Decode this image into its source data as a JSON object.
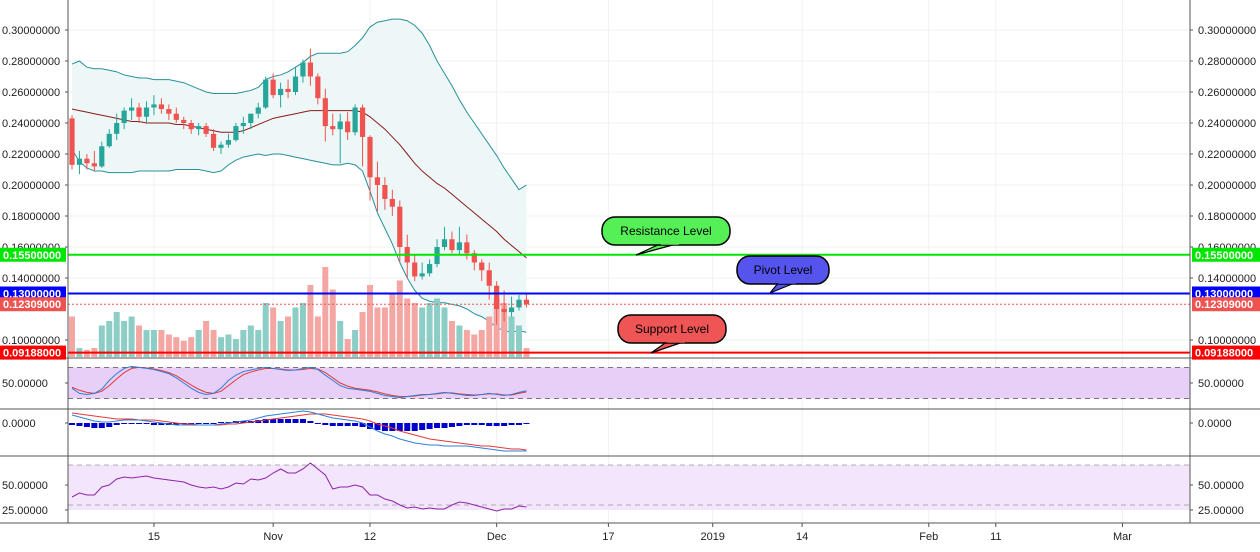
{
  "colors": {
    "up": "#26a69a",
    "down": "#ef5350",
    "volume_up": "#8ccdc5",
    "volume_down": "#f4a6a3",
    "bb_basis": "#8b1a1a",
    "bb_band": "#2a8f9a",
    "bb_fill": "#eef7f7",
    "resistance": "#00e600",
    "pivot": "#0000ff",
    "support": "#ff0000",
    "last_price": "#ef5350",
    "stoch_k": "#2d7fd8",
    "stoch_d": "#e53935",
    "macd_line": "#2d7fd8",
    "macd_signal": "#e53935",
    "macd_hist": "#0000cc",
    "rsi_line": "#8e24aa",
    "osc_fill": "#e8cff8",
    "rsi_fill": "#f3e5fb"
  },
  "levels": {
    "resistance": {
      "label": "Resistance Level",
      "price": 0.155,
      "badge": "0.15500000"
    },
    "pivot": {
      "label": "Pivot Level",
      "price": 0.13,
      "badge": "0.13000000"
    },
    "support": {
      "label": "Support Level",
      "price": 0.09188,
      "badge": "0.09188000"
    },
    "last": {
      "price": 0.12309,
      "badge": "0.12309000"
    }
  },
  "chart_data": {
    "type": "line",
    "main": {
      "y_ticks": [
        "0.30000000",
        "0.28000000",
        "0.26000000",
        "0.24000000",
        "0.22000000",
        "0.20000000",
        "0.18000000",
        "0.16000000",
        "0.14000000",
        "0.10000000"
      ],
      "y_tick_values": [
        0.3,
        0.28,
        0.26,
        0.24,
        0.22,
        0.2,
        0.18,
        0.16,
        0.14,
        0.1
      ],
      "ohlc": [
        [
          0.243,
          0.245,
          0.21,
          0.213
        ],
        [
          0.213,
          0.222,
          0.207,
          0.217
        ],
        [
          0.217,
          0.22,
          0.21,
          0.214
        ],
        [
          0.214,
          0.222,
          0.209,
          0.212
        ],
        [
          0.212,
          0.228,
          0.211,
          0.225
        ],
        [
          0.225,
          0.236,
          0.224,
          0.233
        ],
        [
          0.233,
          0.246,
          0.229,
          0.24
        ],
        [
          0.24,
          0.25,
          0.236,
          0.248
        ],
        [
          0.248,
          0.256,
          0.242,
          0.25
        ],
        [
          0.25,
          0.253,
          0.24,
          0.244
        ],
        [
          0.244,
          0.254,
          0.24,
          0.25
        ],
        [
          0.25,
          0.258,
          0.245,
          0.252
        ],
        [
          0.252,
          0.256,
          0.246,
          0.249
        ],
        [
          0.249,
          0.252,
          0.242,
          0.246
        ],
        [
          0.246,
          0.25,
          0.24,
          0.242
        ],
        [
          0.242,
          0.244,
          0.236,
          0.24
        ],
        [
          0.24,
          0.242,
          0.233,
          0.236
        ],
        [
          0.236,
          0.24,
          0.232,
          0.238
        ],
        [
          0.238,
          0.24,
          0.231,
          0.233
        ],
        [
          0.233,
          0.236,
          0.222,
          0.224
        ],
        [
          0.224,
          0.228,
          0.22,
          0.226
        ],
        [
          0.226,
          0.233,
          0.224,
          0.229
        ],
        [
          0.229,
          0.24,
          0.228,
          0.238
        ],
        [
          0.238,
          0.244,
          0.233,
          0.24
        ],
        [
          0.24,
          0.246,
          0.236,
          0.246
        ],
        [
          0.246,
          0.253,
          0.243,
          0.25
        ],
        [
          0.25,
          0.27,
          0.249,
          0.268
        ],
        [
          0.268,
          0.272,
          0.256,
          0.258
        ],
        [
          0.258,
          0.266,
          0.25,
          0.262
        ],
        [
          0.262,
          0.268,
          0.256,
          0.26
        ],
        [
          0.26,
          0.276,
          0.258,
          0.27
        ],
        [
          0.27,
          0.281,
          0.266,
          0.279
        ],
        [
          0.279,
          0.288,
          0.264,
          0.27
        ],
        [
          0.27,
          0.272,
          0.252,
          0.256
        ],
        [
          0.256,
          0.262,
          0.228,
          0.238
        ],
        [
          0.238,
          0.246,
          0.232,
          0.236
        ],
        [
          0.236,
          0.246,
          0.214,
          0.241
        ],
        [
          0.241,
          0.247,
          0.229,
          0.234
        ],
        [
          0.234,
          0.252,
          0.232,
          0.25
        ],
        [
          0.25,
          0.252,
          0.212,
          0.231
        ],
        [
          0.231,
          0.232,
          0.19,
          0.205
        ],
        [
          0.205,
          0.215,
          0.183,
          0.2
        ],
        [
          0.2,
          0.205,
          0.184,
          0.191
        ],
        [
          0.191,
          0.197,
          0.18,
          0.186
        ],
        [
          0.186,
          0.19,
          0.15,
          0.16
        ],
        [
          0.16,
          0.168,
          0.14,
          0.15
        ],
        [
          0.15,
          0.155,
          0.138,
          0.141
        ],
        [
          0.141,
          0.15,
          0.139,
          0.143
        ],
        [
          0.143,
          0.152,
          0.141,
          0.149
        ],
        [
          0.149,
          0.165,
          0.147,
          0.16
        ],
        [
          0.16,
          0.173,
          0.158,
          0.165
        ],
        [
          0.165,
          0.17,
          0.156,
          0.158
        ],
        [
          0.158,
          0.173,
          0.155,
          0.163
        ],
        [
          0.163,
          0.168,
          0.152,
          0.156
        ],
        [
          0.156,
          0.158,
          0.145,
          0.15
        ],
        [
          0.15,
          0.152,
          0.138,
          0.145
        ],
        [
          0.145,
          0.15,
          0.126,
          0.135
        ],
        [
          0.135,
          0.138,
          0.11,
          0.12
        ],
        [
          0.12,
          0.132,
          0.112,
          0.118
        ],
        [
          0.118,
          0.128,
          0.115,
          0.121
        ],
        [
          0.121,
          0.129,
          0.119,
          0.126
        ],
        [
          0.126,
          0.13,
          0.121,
          0.123
        ]
      ],
      "bb_basis": [
        0.249,
        0.248,
        0.247,
        0.246,
        0.245,
        0.244,
        0.243,
        0.242,
        0.241,
        0.241,
        0.24,
        0.24,
        0.24,
        0.24,
        0.239,
        0.239,
        0.238,
        0.237,
        0.236,
        0.235,
        0.234,
        0.234,
        0.234,
        0.235,
        0.237,
        0.239,
        0.241,
        0.243,
        0.244,
        0.245,
        0.246,
        0.247,
        0.248,
        0.248,
        0.248,
        0.248,
        0.248,
        0.248,
        0.248,
        0.247,
        0.244,
        0.24,
        0.236,
        0.231,
        0.226,
        0.22,
        0.214,
        0.209,
        0.205,
        0.201,
        0.198,
        0.194,
        0.19,
        0.186,
        0.182,
        0.178,
        0.174,
        0.17,
        0.165,
        0.161,
        0.157,
        0.153
      ],
      "bb_upper": [
        0.278,
        0.28,
        0.276,
        0.275,
        0.275,
        0.274,
        0.273,
        0.271,
        0.27,
        0.269,
        0.269,
        0.268,
        0.268,
        0.268,
        0.267,
        0.266,
        0.264,
        0.262,
        0.26,
        0.259,
        0.259,
        0.259,
        0.259,
        0.26,
        0.261,
        0.263,
        0.268,
        0.27,
        0.271,
        0.273,
        0.276,
        0.279,
        0.283,
        0.285,
        0.285,
        0.285,
        0.285,
        0.286,
        0.29,
        0.295,
        0.302,
        0.305,
        0.306,
        0.307,
        0.307,
        0.306,
        0.303,
        0.298,
        0.29,
        0.28,
        0.272,
        0.264,
        0.255,
        0.247,
        0.24,
        0.233,
        0.226,
        0.219,
        0.211,
        0.204,
        0.197,
        0.2
      ],
      "bb_lower": [
        0.223,
        0.215,
        0.211,
        0.209,
        0.209,
        0.208,
        0.208,
        0.208,
        0.208,
        0.209,
        0.209,
        0.209,
        0.209,
        0.209,
        0.21,
        0.21,
        0.21,
        0.21,
        0.209,
        0.208,
        0.209,
        0.213,
        0.216,
        0.218,
        0.219,
        0.22,
        0.219,
        0.22,
        0.22,
        0.219,
        0.218,
        0.217,
        0.216,
        0.215,
        0.214,
        0.213,
        0.213,
        0.214,
        0.213,
        0.209,
        0.196,
        0.182,
        0.172,
        0.162,
        0.15,
        0.14,
        0.132,
        0.127,
        0.125,
        0.124,
        0.124,
        0.123,
        0.122,
        0.12,
        0.117,
        0.115,
        0.112,
        0.108,
        0.106,
        0.105,
        0.106,
        0.105
      ],
      "volume": [
        0.45,
        0.1,
        0.08,
        0.1,
        0.35,
        0.4,
        0.5,
        0.4,
        0.45,
        0.35,
        0.3,
        0.3,
        0.3,
        0.25,
        0.22,
        0.18,
        0.22,
        0.3,
        0.4,
        0.3,
        0.22,
        0.25,
        0.2,
        0.3,
        0.35,
        0.3,
        0.6,
        0.55,
        0.4,
        0.45,
        0.55,
        0.6,
        0.8,
        0.45,
        1.0,
        0.75,
        0.4,
        0.2,
        0.3,
        0.5,
        0.8,
        0.55,
        0.55,
        0.7,
        0.85,
        0.65,
        0.6,
        0.55,
        0.6,
        0.65,
        0.55,
        0.4,
        0.35,
        0.3,
        0.25,
        0.3,
        0.45,
        0.65,
        0.6,
        0.45,
        0.35,
        0.1
      ]
    },
    "stoch": {
      "y_ticks": [
        "50.00000"
      ],
      "y_tick_values": [
        50
      ],
      "k": [
        40,
        30,
        28,
        30,
        38,
        55,
        68,
        78,
        82,
        80,
        78,
        76,
        72,
        68,
        60,
        50,
        40,
        32,
        28,
        30,
        40,
        55,
        65,
        72,
        75,
        78,
        80,
        78,
        76,
        74,
        75,
        78,
        80,
        76,
        65,
        55,
        45,
        40,
        38,
        36,
        34,
        30,
        26,
        24,
        22,
        24,
        26,
        28,
        28,
        30,
        32,
        30,
        28,
        26,
        26,
        28,
        30,
        28,
        26,
        28,
        32,
        35
      ],
      "d": [
        42,
        36,
        32,
        30,
        34,
        45,
        58,
        70,
        78,
        80,
        79,
        77,
        74,
        70,
        64,
        55,
        46,
        38,
        32,
        30,
        34,
        45,
        56,
        66,
        71,
        75,
        78,
        78,
        77,
        75,
        75,
        76,
        78,
        77,
        70,
        60,
        50,
        44,
        40,
        38,
        36,
        33,
        29,
        26,
        24,
        24,
        25,
        27,
        28,
        29,
        31,
        31,
        29,
        28,
        27,
        28,
        29,
        29,
        27,
        27,
        30,
        33
      ]
    },
    "macd": {
      "y_ticks": [
        "0.0000"
      ],
      "y_tick_values": [
        0
      ],
      "macd": [
        0.008,
        0.006,
        0.004,
        0.002,
        0.001,
        0.001,
        0.002,
        0.003,
        0.003,
        0.003,
        0.002,
        0.001,
        0.0,
        -0.001,
        -0.002,
        -0.002,
        -0.002,
        -0.002,
        -0.002,
        -0.002,
        -0.001,
        0.0,
        0.001,
        0.002,
        0.003,
        0.005,
        0.007,
        0.008,
        0.009,
        0.01,
        0.011,
        0.012,
        0.011,
        0.009,
        0.007,
        0.005,
        0.004,
        0.003,
        0.002,
        0.0,
        -0.004,
        -0.008,
        -0.011,
        -0.013,
        -0.016,
        -0.018,
        -0.02,
        -0.021,
        -0.022,
        -0.022,
        -0.023,
        -0.023,
        -0.023,
        -0.023,
        -0.024,
        -0.025,
        -0.026,
        -0.027,
        -0.028,
        -0.028,
        -0.028,
        -0.028
      ],
      "signal": [
        0.01,
        0.009,
        0.008,
        0.007,
        0.006,
        0.005,
        0.004,
        0.004,
        0.004,
        0.003,
        0.003,
        0.003,
        0.002,
        0.001,
        0.0,
        -0.001,
        -0.001,
        -0.002,
        -0.002,
        -0.002,
        -0.002,
        -0.001,
        -0.001,
        0.0,
        0.001,
        0.002,
        0.003,
        0.004,
        0.005,
        0.006,
        0.007,
        0.008,
        0.009,
        0.009,
        0.009,
        0.008,
        0.007,
        0.006,
        0.005,
        0.004,
        0.002,
        -0.001,
        -0.003,
        -0.005,
        -0.008,
        -0.01,
        -0.012,
        -0.014,
        -0.016,
        -0.017,
        -0.018,
        -0.019,
        -0.02,
        -0.021,
        -0.022,
        -0.023,
        -0.023,
        -0.024,
        -0.025,
        -0.026,
        -0.026,
        -0.027
      ],
      "hist": [
        -0.002,
        -0.003,
        -0.004,
        -0.005,
        -0.005,
        -0.004,
        -0.002,
        -0.001,
        -0.001,
        0.0,
        -0.001,
        -0.002,
        -0.002,
        -0.002,
        -0.002,
        -0.001,
        -0.001,
        0.0,
        0.0,
        0.0,
        0.001,
        0.001,
        0.002,
        0.002,
        0.002,
        0.003,
        0.004,
        0.004,
        0.004,
        0.004,
        0.004,
        0.004,
        0.002,
        0.0,
        -0.002,
        -0.003,
        -0.003,
        -0.003,
        -0.003,
        -0.004,
        -0.006,
        -0.007,
        -0.008,
        -0.008,
        -0.008,
        -0.008,
        -0.008,
        -0.007,
        -0.006,
        -0.005,
        -0.005,
        -0.004,
        -0.003,
        -0.002,
        -0.002,
        -0.002,
        -0.003,
        -0.003,
        -0.003,
        -0.002,
        -0.002,
        -0.001
      ]
    },
    "rsi": {
      "y_ticks": [
        "50.00000",
        "25.00000"
      ],
      "y_tick_values": [
        50,
        25
      ],
      "values": [
        38,
        42,
        40,
        40,
        48,
        50,
        56,
        58,
        57,
        58,
        59,
        57,
        56,
        55,
        54,
        53,
        50,
        48,
        47,
        48,
        46,
        48,
        52,
        51,
        56,
        55,
        57,
        62,
        66,
        62,
        62,
        66,
        72,
        66,
        60,
        46,
        48,
        48,
        50,
        48,
        40,
        40,
        36,
        34,
        30,
        27,
        28,
        26,
        27,
        26,
        26,
        30,
        33,
        32,
        30,
        28,
        26,
        24,
        26,
        26,
        29,
        28
      ]
    },
    "x_ticks": [
      {
        "label": "15",
        "pos": 11
      },
      {
        "label": "Nov",
        "pos": 27
      },
      {
        "label": "12",
        "pos": 40
      },
      {
        "label": "Dec",
        "pos": 57
      },
      {
        "label": "17",
        "pos": 72
      },
      {
        "label": "2019",
        "pos": 86
      },
      {
        "label": "14",
        "pos": 98
      },
      {
        "label": "Feb",
        "pos": 115
      },
      {
        "label": "11",
        "pos": 124
      },
      {
        "label": "Mar",
        "pos": 141
      }
    ]
  }
}
